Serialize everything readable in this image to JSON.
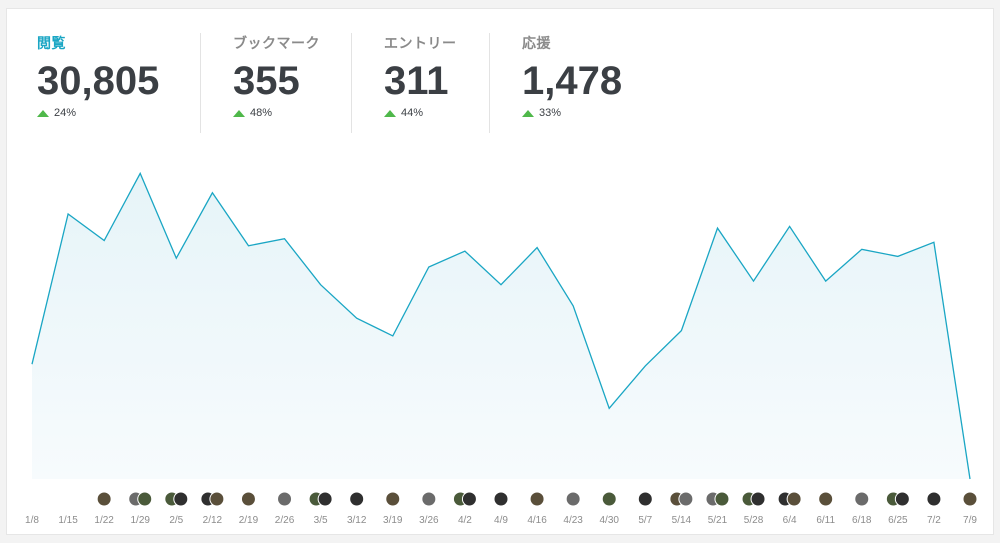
{
  "stats": [
    {
      "label": "閲覧",
      "value": "30,805",
      "change": "24%",
      "active": true
    },
    {
      "label": "ブックマーク",
      "value": "355",
      "change": "48%",
      "active": false
    },
    {
      "label": "エントリー",
      "value": "311",
      "change": "44%",
      "active": false
    },
    {
      "label": "応援",
      "value": "1,478",
      "change": "33%",
      "active": false
    }
  ],
  "colors": {
    "accent": "#1aa6c4",
    "up": "#4fb84a",
    "fill": "#eaf6fa"
  },
  "chart_data": {
    "type": "area",
    "title": "閲覧",
    "categories": [
      "1/8",
      "1/15",
      "1/22",
      "1/29",
      "2/5",
      "2/12",
      "2/19",
      "2/26",
      "3/5",
      "3/12",
      "3/19",
      "3/26",
      "4/2",
      "4/9",
      "4/16",
      "4/23",
      "4/30",
      "5/7",
      "5/14",
      "5/21",
      "5/28",
      "6/4",
      "6/11",
      "6/18",
      "6/25",
      "7/2",
      "7/9"
    ],
    "values": [
      650,
      1500,
      1350,
      1730,
      1250,
      1620,
      1320,
      1360,
      1100,
      910,
      810,
      1200,
      1290,
      1100,
      1310,
      980,
      400,
      640,
      840,
      1420,
      1120,
      1430,
      1120,
      1300,
      1260,
      1340,
      0
    ],
    "ylim": [
      0,
      1800
    ],
    "grid": false,
    "avatars_per_week": [
      0,
      0,
      1,
      2,
      2,
      2,
      1,
      1,
      2,
      1,
      1,
      1,
      2,
      1,
      1,
      1,
      1,
      1,
      2,
      2,
      2,
      2,
      1,
      1,
      2,
      1,
      1
    ]
  }
}
